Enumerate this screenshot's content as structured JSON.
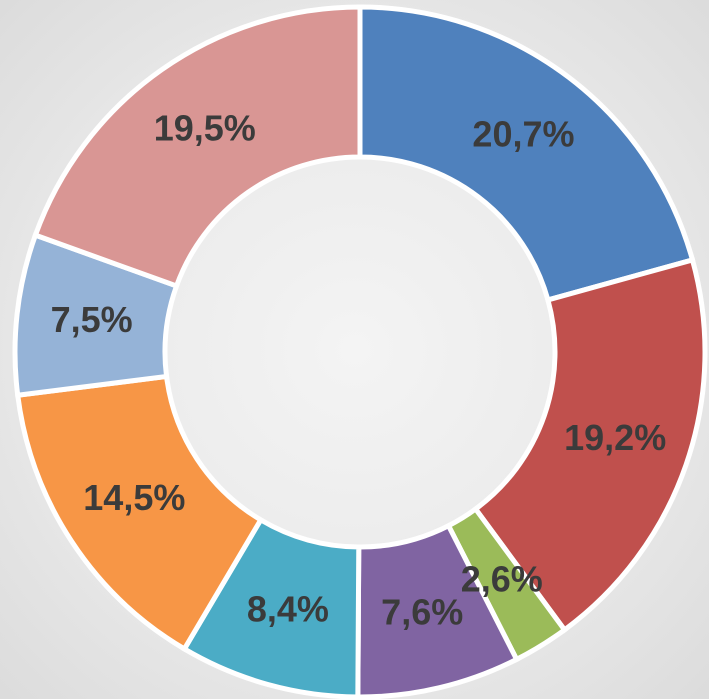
{
  "chart_data": {
    "type": "donut",
    "values": [
      20.7,
      19.2,
      2.6,
      7.6,
      8.4,
      14.5,
      7.5,
      19.5
    ],
    "value_labels": [
      "20,7%",
      "19,2%",
      "2,6%",
      "7,6%",
      "8,4%",
      "14,5%",
      "7,5%",
      "19,5%"
    ],
    "colors": [
      "#4f81bd",
      "#c0504d",
      "#9bbb59",
      "#8064a2",
      "#4bacc6",
      "#f79646",
      "#95b3d7",
      "#d99694"
    ]
  }
}
